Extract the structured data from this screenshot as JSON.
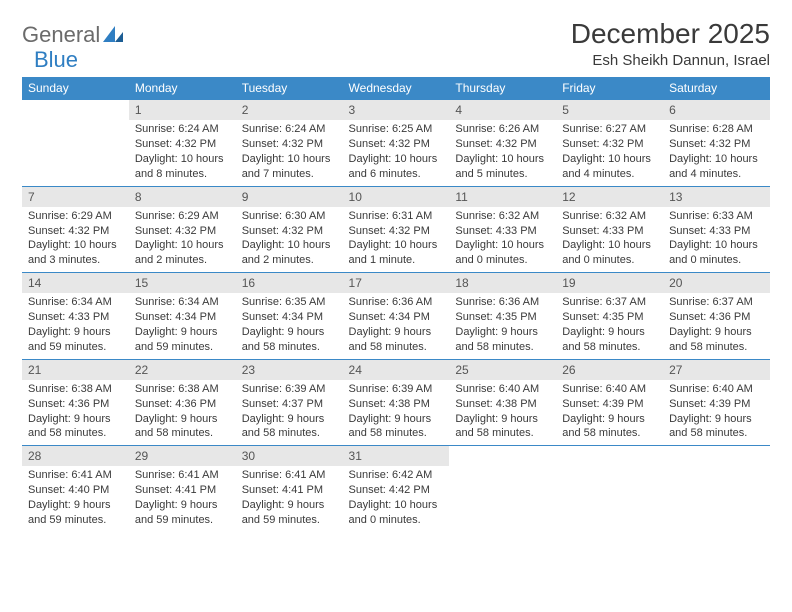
{
  "logo": {
    "text1": "General",
    "text2": "Blue"
  },
  "title": "December 2025",
  "location": "Esh Sheikh Dannun, Israel",
  "colors": {
    "header_bg": "#3b89c7",
    "header_text": "#ffffff",
    "daynum_bg": "#e7e7e7",
    "border": "#3b89c7",
    "logo_gray": "#6b6b6b",
    "logo_blue": "#2f7ec2"
  },
  "day_headers": [
    "Sunday",
    "Monday",
    "Tuesday",
    "Wednesday",
    "Thursday",
    "Friday",
    "Saturday"
  ],
  "weeks": [
    [
      {
        "n": "",
        "sr": "",
        "ss": "",
        "dl": ""
      },
      {
        "n": "1",
        "sr": "Sunrise: 6:24 AM",
        "ss": "Sunset: 4:32 PM",
        "dl": "Daylight: 10 hours and 8 minutes."
      },
      {
        "n": "2",
        "sr": "Sunrise: 6:24 AM",
        "ss": "Sunset: 4:32 PM",
        "dl": "Daylight: 10 hours and 7 minutes."
      },
      {
        "n": "3",
        "sr": "Sunrise: 6:25 AM",
        "ss": "Sunset: 4:32 PM",
        "dl": "Daylight: 10 hours and 6 minutes."
      },
      {
        "n": "4",
        "sr": "Sunrise: 6:26 AM",
        "ss": "Sunset: 4:32 PM",
        "dl": "Daylight: 10 hours and 5 minutes."
      },
      {
        "n": "5",
        "sr": "Sunrise: 6:27 AM",
        "ss": "Sunset: 4:32 PM",
        "dl": "Daylight: 10 hours and 4 minutes."
      },
      {
        "n": "6",
        "sr": "Sunrise: 6:28 AM",
        "ss": "Sunset: 4:32 PM",
        "dl": "Daylight: 10 hours and 4 minutes."
      }
    ],
    [
      {
        "n": "7",
        "sr": "Sunrise: 6:29 AM",
        "ss": "Sunset: 4:32 PM",
        "dl": "Daylight: 10 hours and 3 minutes."
      },
      {
        "n": "8",
        "sr": "Sunrise: 6:29 AM",
        "ss": "Sunset: 4:32 PM",
        "dl": "Daylight: 10 hours and 2 minutes."
      },
      {
        "n": "9",
        "sr": "Sunrise: 6:30 AM",
        "ss": "Sunset: 4:32 PM",
        "dl": "Daylight: 10 hours and 2 minutes."
      },
      {
        "n": "10",
        "sr": "Sunrise: 6:31 AM",
        "ss": "Sunset: 4:32 PM",
        "dl": "Daylight: 10 hours and 1 minute."
      },
      {
        "n": "11",
        "sr": "Sunrise: 6:32 AM",
        "ss": "Sunset: 4:33 PM",
        "dl": "Daylight: 10 hours and 0 minutes."
      },
      {
        "n": "12",
        "sr": "Sunrise: 6:32 AM",
        "ss": "Sunset: 4:33 PM",
        "dl": "Daylight: 10 hours and 0 minutes."
      },
      {
        "n": "13",
        "sr": "Sunrise: 6:33 AM",
        "ss": "Sunset: 4:33 PM",
        "dl": "Daylight: 10 hours and 0 minutes."
      }
    ],
    [
      {
        "n": "14",
        "sr": "Sunrise: 6:34 AM",
        "ss": "Sunset: 4:33 PM",
        "dl": "Daylight: 9 hours and 59 minutes."
      },
      {
        "n": "15",
        "sr": "Sunrise: 6:34 AM",
        "ss": "Sunset: 4:34 PM",
        "dl": "Daylight: 9 hours and 59 minutes."
      },
      {
        "n": "16",
        "sr": "Sunrise: 6:35 AM",
        "ss": "Sunset: 4:34 PM",
        "dl": "Daylight: 9 hours and 58 minutes."
      },
      {
        "n": "17",
        "sr": "Sunrise: 6:36 AM",
        "ss": "Sunset: 4:34 PM",
        "dl": "Daylight: 9 hours and 58 minutes."
      },
      {
        "n": "18",
        "sr": "Sunrise: 6:36 AM",
        "ss": "Sunset: 4:35 PM",
        "dl": "Daylight: 9 hours and 58 minutes."
      },
      {
        "n": "19",
        "sr": "Sunrise: 6:37 AM",
        "ss": "Sunset: 4:35 PM",
        "dl": "Daylight: 9 hours and 58 minutes."
      },
      {
        "n": "20",
        "sr": "Sunrise: 6:37 AM",
        "ss": "Sunset: 4:36 PM",
        "dl": "Daylight: 9 hours and 58 minutes."
      }
    ],
    [
      {
        "n": "21",
        "sr": "Sunrise: 6:38 AM",
        "ss": "Sunset: 4:36 PM",
        "dl": "Daylight: 9 hours and 58 minutes."
      },
      {
        "n": "22",
        "sr": "Sunrise: 6:38 AM",
        "ss": "Sunset: 4:36 PM",
        "dl": "Daylight: 9 hours and 58 minutes."
      },
      {
        "n": "23",
        "sr": "Sunrise: 6:39 AM",
        "ss": "Sunset: 4:37 PM",
        "dl": "Daylight: 9 hours and 58 minutes."
      },
      {
        "n": "24",
        "sr": "Sunrise: 6:39 AM",
        "ss": "Sunset: 4:38 PM",
        "dl": "Daylight: 9 hours and 58 minutes."
      },
      {
        "n": "25",
        "sr": "Sunrise: 6:40 AM",
        "ss": "Sunset: 4:38 PM",
        "dl": "Daylight: 9 hours and 58 minutes."
      },
      {
        "n": "26",
        "sr": "Sunrise: 6:40 AM",
        "ss": "Sunset: 4:39 PM",
        "dl": "Daylight: 9 hours and 58 minutes."
      },
      {
        "n": "27",
        "sr": "Sunrise: 6:40 AM",
        "ss": "Sunset: 4:39 PM",
        "dl": "Daylight: 9 hours and 58 minutes."
      }
    ],
    [
      {
        "n": "28",
        "sr": "Sunrise: 6:41 AM",
        "ss": "Sunset: 4:40 PM",
        "dl": "Daylight: 9 hours and 59 minutes."
      },
      {
        "n": "29",
        "sr": "Sunrise: 6:41 AM",
        "ss": "Sunset: 4:41 PM",
        "dl": "Daylight: 9 hours and 59 minutes."
      },
      {
        "n": "30",
        "sr": "Sunrise: 6:41 AM",
        "ss": "Sunset: 4:41 PM",
        "dl": "Daylight: 9 hours and 59 minutes."
      },
      {
        "n": "31",
        "sr": "Sunrise: 6:42 AM",
        "ss": "Sunset: 4:42 PM",
        "dl": "Daylight: 10 hours and 0 minutes."
      },
      {
        "n": "",
        "sr": "",
        "ss": "",
        "dl": ""
      },
      {
        "n": "",
        "sr": "",
        "ss": "",
        "dl": ""
      },
      {
        "n": "",
        "sr": "",
        "ss": "",
        "dl": ""
      }
    ]
  ]
}
